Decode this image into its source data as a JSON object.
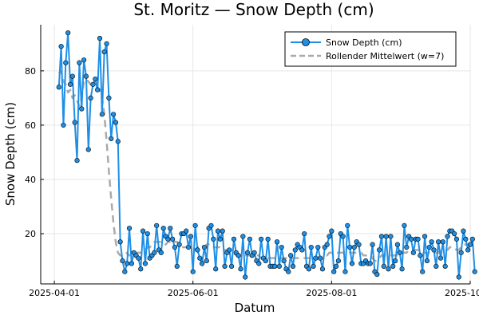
{
  "chart_data": {
    "type": "line",
    "title": "St. Moritz — Snow Depth (cm)",
    "xlabel": "Datum",
    "ylabel": "Snow Depth (cm)",
    "x_range": [
      "2025-03-26",
      "2025-10-01"
    ],
    "ylim": [
      1.5,
      97
    ],
    "x_ticks": [
      {
        "date": "2025-04-01",
        "label": "2025-04-01"
      },
      {
        "date": "2025-06-01",
        "label": "2025-06-01"
      },
      {
        "date": "2025-08-01",
        "label": "2025-08-01"
      },
      {
        "date": "2025-10-01",
        "label": "2025-10-01"
      }
    ],
    "y_ticks": [
      20,
      40,
      60,
      80
    ],
    "grid": true,
    "legend_position": "top-right",
    "start_date": "2025-04-03",
    "series": [
      {
        "name": "Snow Depth (cm)",
        "color": "#1f8fe6",
        "marker": "circle",
        "values": [
          74,
          89,
          60,
          83,
          94,
          75,
          78,
          61,
          47,
          83,
          66,
          84,
          78,
          51,
          70,
          75,
          77,
          73,
          92,
          64,
          87,
          90,
          70,
          55,
          64,
          61,
          54,
          17,
          10,
          6,
          9,
          22,
          9,
          13,
          12,
          11,
          7,
          21,
          9,
          20,
          11,
          12,
          13,
          23,
          14,
          13,
          22,
          19,
          18,
          22,
          18,
          15,
          8,
          16,
          20,
          20,
          21,
          15,
          19,
          6,
          23,
          14,
          11,
          9,
          15,
          10,
          22,
          23,
          18,
          7,
          21,
          18,
          21,
          8,
          13,
          14,
          8,
          18,
          13,
          12,
          7,
          19,
          4,
          13,
          18,
          12,
          13,
          10,
          9,
          18,
          11,
          10,
          18,
          8,
          8,
          8,
          17,
          8,
          15,
          10,
          7,
          6,
          12,
          8,
          14,
          16,
          15,
          14,
          20,
          8,
          7,
          15,
          8,
          11,
          15,
          11,
          7,
          15,
          16,
          19,
          21,
          6,
          8,
          10,
          20,
          19,
          6,
          23,
          15,
          9,
          15,
          17,
          16,
          9,
          9,
          10,
          9,
          9,
          16,
          6,
          5,
          14,
          19,
          8,
          19,
          7,
          19,
          8,
          10,
          16,
          13,
          7,
          23,
          15,
          19,
          18,
          13,
          18,
          18,
          12,
          6,
          19,
          10,
          15,
          17,
          14,
          8,
          17,
          11,
          17,
          8,
          19,
          21,
          21,
          20,
          18,
          4,
          13,
          21,
          18,
          14,
          16,
          18,
          6
        ]
      },
      {
        "name": "Rollender Mittelwert (w=7)",
        "color": "#aaaaaa",
        "dash": true,
        "values": [
          79,
          80,
          76,
          75,
          72,
          73,
          70,
          71,
          69,
          67,
          70,
          76,
          77,
          76,
          75,
          75,
          74,
          74,
          73,
          70,
          64,
          54,
          43,
          33,
          24,
          17,
          13,
          12,
          12,
          12,
          13,
          12,
          12,
          12,
          13,
          13,
          13,
          13,
          14,
          15,
          15,
          16,
          17,
          17,
          17,
          17,
          17,
          16,
          17,
          17,
          18,
          17,
          17,
          16,
          15,
          15,
          15,
          15,
          15,
          15,
          14,
          15,
          15,
          15,
          15,
          16,
          16,
          15,
          15,
          15,
          15,
          15,
          14,
          14,
          14,
          13,
          13,
          13,
          12,
          12,
          12,
          12,
          12,
          12,
          12,
          12,
          12,
          12,
          12,
          11,
          11,
          11,
          11,
          11,
          11,
          11,
          11,
          11,
          11,
          11,
          11,
          11,
          11,
          11,
          11,
          11,
          11,
          11,
          11,
          11,
          11,
          11,
          11,
          11,
          11,
          11,
          11,
          12,
          12,
          13,
          13,
          13,
          13,
          13,
          13,
          13,
          13,
          13,
          13,
          13,
          13,
          13,
          13,
          13,
          12,
          12,
          12,
          12,
          11,
          10,
          10,
          11,
          12,
          12,
          12,
          12,
          12,
          12,
          12,
          12,
          12,
          13,
          13,
          13,
          14,
          14,
          14,
          14,
          14,
          14,
          13,
          13,
          13,
          13,
          13,
          13,
          13,
          13,
          14,
          14,
          14,
          14,
          15,
          15,
          15,
          14,
          14,
          15,
          16,
          16,
          16,
          16,
          16,
          15
        ]
      }
    ]
  }
}
